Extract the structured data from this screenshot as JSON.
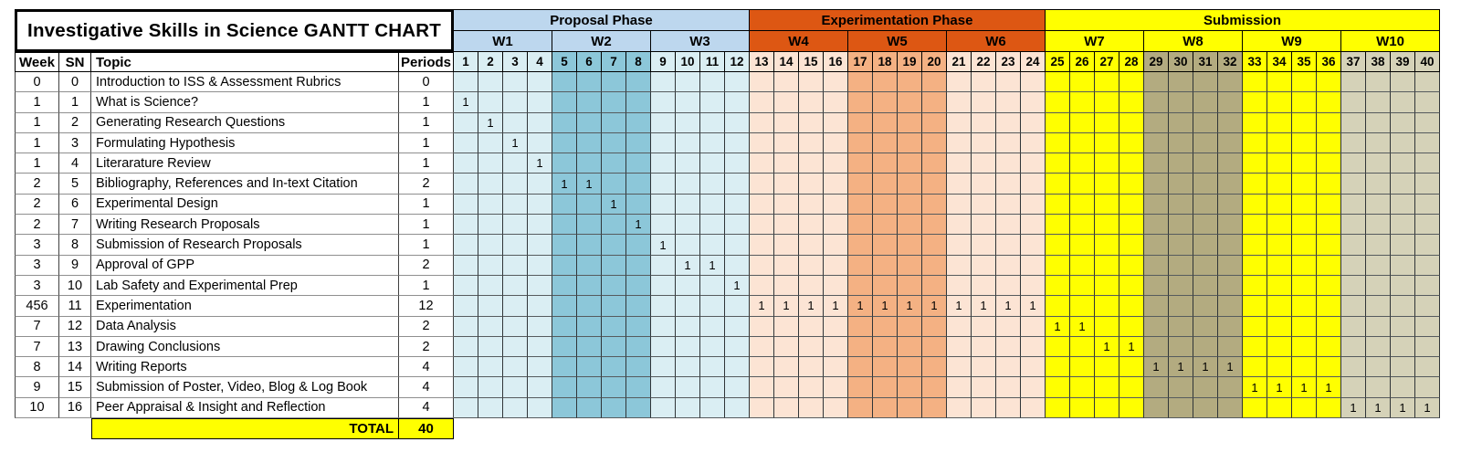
{
  "chart_data": {
    "type": "table",
    "subtype": "gantt",
    "title": "Investigative Skills in Science GANTT CHART",
    "columns": [
      "Week",
      "SN",
      "Topic",
      "Periods"
    ],
    "day_numbers": [
      1,
      2,
      3,
      4,
      5,
      6,
      7,
      8,
      9,
      10,
      11,
      12,
      13,
      14,
      15,
      16,
      17,
      18,
      19,
      20,
      21,
      22,
      23,
      24,
      25,
      26,
      27,
      28,
      29,
      30,
      31,
      32,
      33,
      34,
      35,
      36,
      37,
      38,
      39,
      40
    ],
    "mark_symbol": "1",
    "legend_position": "none",
    "grid": true,
    "phases": [
      {
        "label": "Proposal Phase",
        "header_color": "#BDD7EE",
        "weeks": [
          {
            "label": "W1",
            "day_start": 1,
            "day_end": 4,
            "cell_color": "#DAEEF3"
          },
          {
            "label": "W2",
            "day_start": 5,
            "day_end": 8,
            "cell_color": "#8CC7D9"
          },
          {
            "label": "W3",
            "day_start": 9,
            "day_end": 12,
            "cell_color": "#DAEEF3"
          }
        ]
      },
      {
        "label": "Experimentation Phase",
        "header_color": "#DD5713",
        "weeks": [
          {
            "label": "W4",
            "day_start": 13,
            "day_end": 16,
            "cell_color": "#FCE4D4"
          },
          {
            "label": "W5",
            "day_start": 17,
            "day_end": 20,
            "cell_color": "#F4B183"
          },
          {
            "label": "W6",
            "day_start": 21,
            "day_end": 24,
            "cell_color": "#FCE4D4"
          }
        ]
      },
      {
        "label": "Submission",
        "header_color": "#FFFF00",
        "weeks": [
          {
            "label": "W7",
            "day_start": 25,
            "day_end": 28,
            "cell_color": "#FFFF00"
          },
          {
            "label": "W8",
            "day_start": 29,
            "day_end": 32,
            "cell_color": "#B3AB80"
          },
          {
            "label": "W9",
            "day_start": 33,
            "day_end": 36,
            "cell_color": "#FFFF00"
          },
          {
            "label": "W10",
            "day_start": 37,
            "day_end": 40,
            "cell_color": "#D5D2B8"
          }
        ]
      }
    ],
    "tasks": [
      {
        "week": "0",
        "sn": "0",
        "topic": "Introduction to ISS & Assessment Rubrics",
        "periods": "0",
        "start": null,
        "end": null
      },
      {
        "week": "1",
        "sn": "1",
        "topic": "What is Science?",
        "periods": "1",
        "start": 1,
        "end": 1
      },
      {
        "week": "1",
        "sn": "2",
        "topic": "Generating Research Questions",
        "periods": "1",
        "start": 2,
        "end": 2
      },
      {
        "week": "1",
        "sn": "3",
        "topic": "Formulating Hypothesis",
        "periods": "1",
        "start": 3,
        "end": 3
      },
      {
        "week": "1",
        "sn": "4",
        "topic": "Literarature Review",
        "periods": "1",
        "start": 4,
        "end": 4
      },
      {
        "week": "2",
        "sn": "5",
        "topic": "Bibliography, References and In-text Citation",
        "periods": "2",
        "start": 5,
        "end": 6
      },
      {
        "week": "2",
        "sn": "6",
        "topic": "Experimental Design",
        "periods": "1",
        "start": 7,
        "end": 7
      },
      {
        "week": "2",
        "sn": "7",
        "topic": "Writing Research Proposals",
        "periods": "1",
        "start": 8,
        "end": 8
      },
      {
        "week": "3",
        "sn": "8",
        "topic": "Submission of Research Proposals",
        "periods": "1",
        "start": 9,
        "end": 9
      },
      {
        "week": "3",
        "sn": "9",
        "topic": "Approval of GPP",
        "periods": "2",
        "start": 10,
        "end": 11
      },
      {
        "week": "3",
        "sn": "10",
        "topic": "Lab Safety and Experimental Prep",
        "periods": "1",
        "start": 12,
        "end": 12
      },
      {
        "week": "456",
        "sn": "11",
        "topic": "Experimentation",
        "periods": "12",
        "start": 13,
        "end": 24
      },
      {
        "week": "7",
        "sn": "12",
        "topic": "Data Analysis",
        "periods": "2",
        "start": 25,
        "end": 26
      },
      {
        "week": "7",
        "sn": "13",
        "topic": "Drawing Conclusions",
        "periods": "2",
        "start": 27,
        "end": 28
      },
      {
        "week": "8",
        "sn": "14",
        "topic": "Writing Reports",
        "periods": "4",
        "start": 29,
        "end": 32
      },
      {
        "week": "9",
        "sn": "15",
        "topic": "Submission of Poster, Video, Blog & Log Book",
        "periods": "4",
        "start": 33,
        "end": 36
      },
      {
        "week": "10",
        "sn": "16",
        "topic": "Peer Appraisal & Insight and Reflection",
        "periods": "4",
        "start": 37,
        "end": 40
      }
    ],
    "total": {
      "label": "TOTAL",
      "value": "40",
      "highlight_color": "#FFFF00"
    }
  }
}
